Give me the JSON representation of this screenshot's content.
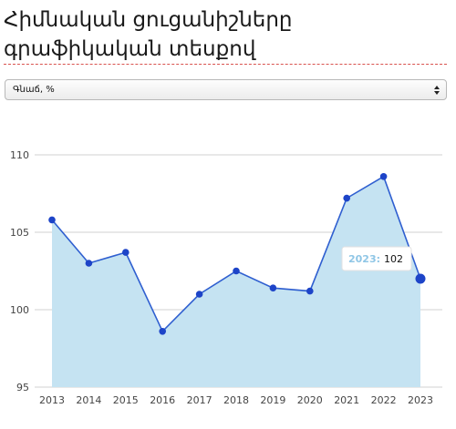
{
  "header": {
    "title": "Հիմնական ցուցանիշները գրաֆիկական տեսքով"
  },
  "indicator_select": {
    "selected": "Գնաճ, %"
  },
  "colors": {
    "line": "#2f5fd0",
    "point": "#1d44c8",
    "area": "#c5e3f2",
    "grid": "#d0d0d0",
    "title_rule": "#d9534f"
  },
  "tooltip": {
    "year": "2023:",
    "value": "102"
  },
  "chart_data": {
    "type": "area",
    "categories": [
      "2013",
      "2014",
      "2015",
      "2016",
      "2017",
      "2018",
      "2019",
      "2020",
      "2021",
      "2022",
      "2023"
    ],
    "series": [
      {
        "values": [
          105.8,
          103.0,
          103.7,
          98.6,
          101.0,
          102.5,
          101.4,
          101.2,
          107.2,
          108.6,
          102.0
        ]
      }
    ],
    "yticks": [
      95,
      100,
      105,
      110
    ],
    "ylim": [
      95,
      110
    ],
    "grid": "horizontal",
    "highlighted_index": 10
  }
}
